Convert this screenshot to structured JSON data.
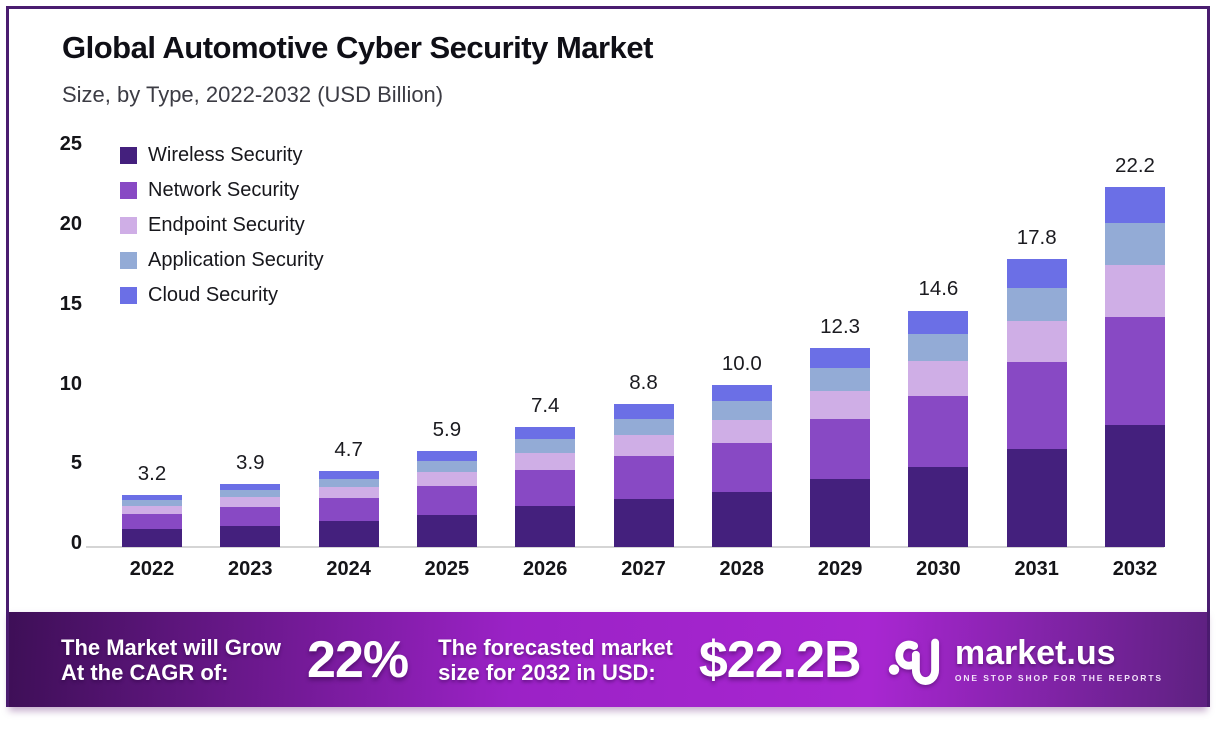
{
  "header": {
    "title": "Global Automotive Cyber Security Market",
    "subtitle": "Size, by Type, 2022-2032 (USD Billion)"
  },
  "chart_data": {
    "type": "bar",
    "stacked": true,
    "title": "Global Automotive Cyber Security Market Size, by Type, 2022-2032 (USD Billion)",
    "xlabel": "",
    "ylabel": "USD Billion",
    "ylim": [
      0,
      25
    ],
    "yticks": [
      0,
      5,
      10,
      15,
      20,
      25
    ],
    "grid": false,
    "legend_position": "top-left",
    "categories": [
      "2022",
      "2023",
      "2024",
      "2025",
      "2026",
      "2027",
      "2028",
      "2029",
      "2030",
      "2031",
      "2032"
    ],
    "totals": [
      3.2,
      3.9,
      4.7,
      5.9,
      7.4,
      8.8,
      10.0,
      12.3,
      14.6,
      17.8,
      22.2
    ],
    "total_labels": [
      "3.2",
      "3.9",
      "4.7",
      "5.9",
      "7.4",
      "8.8",
      "10.0",
      "12.3",
      "14.6",
      "17.8",
      "22.2"
    ],
    "series": [
      {
        "name": "Wireless Security",
        "color": "#44207d",
        "values": [
          1.09,
          1.32,
          1.6,
          2.0,
          2.52,
          2.99,
          3.4,
          4.19,
          4.96,
          6.05,
          7.55
        ]
      },
      {
        "name": "Network Security",
        "color": "#8849c4",
        "values": [
          0.96,
          1.17,
          1.41,
          1.77,
          2.22,
          2.64,
          3.0,
          3.69,
          4.38,
          5.34,
          6.66
        ]
      },
      {
        "name": "Endpoint Security",
        "color": "#cfaee6",
        "values": [
          0.46,
          0.57,
          0.68,
          0.86,
          1.07,
          1.28,
          1.45,
          1.78,
          2.12,
          2.58,
          3.22
        ]
      },
      {
        "name": "Application Security",
        "color": "#93abd6",
        "values": [
          0.37,
          0.45,
          0.54,
          0.68,
          0.85,
          1.01,
          1.15,
          1.41,
          1.68,
          2.05,
          2.55
        ]
      },
      {
        "name": "Cloud Security",
        "color": "#6b6fe6",
        "values": [
          0.32,
          0.39,
          0.47,
          0.59,
          0.74,
          0.88,
          1.0,
          1.23,
          1.46,
          1.78,
          2.22
        ]
      }
    ]
  },
  "banner": {
    "cagr_label_line1": "The Market will Grow",
    "cagr_label_line2": "At the CAGR of:",
    "cagr_value": "22%",
    "forecast_label_line1": "The forecasted market",
    "forecast_label_line2": "size for 2032 in USD:",
    "forecast_value": "$22.2B",
    "brand": {
      "name": "market.us",
      "tagline": "ONE STOP SHOP FOR THE REPORTS"
    },
    "gradient": [
      "#3e0f57",
      "#9b22c6",
      "#a826d1",
      "#5e2181"
    ]
  },
  "colors": {
    "frame_border": "#4a1d70",
    "axis_line": "#d5d5d5",
    "title_text": "#0f0f16",
    "subtitle_text": "#3c3c44"
  }
}
